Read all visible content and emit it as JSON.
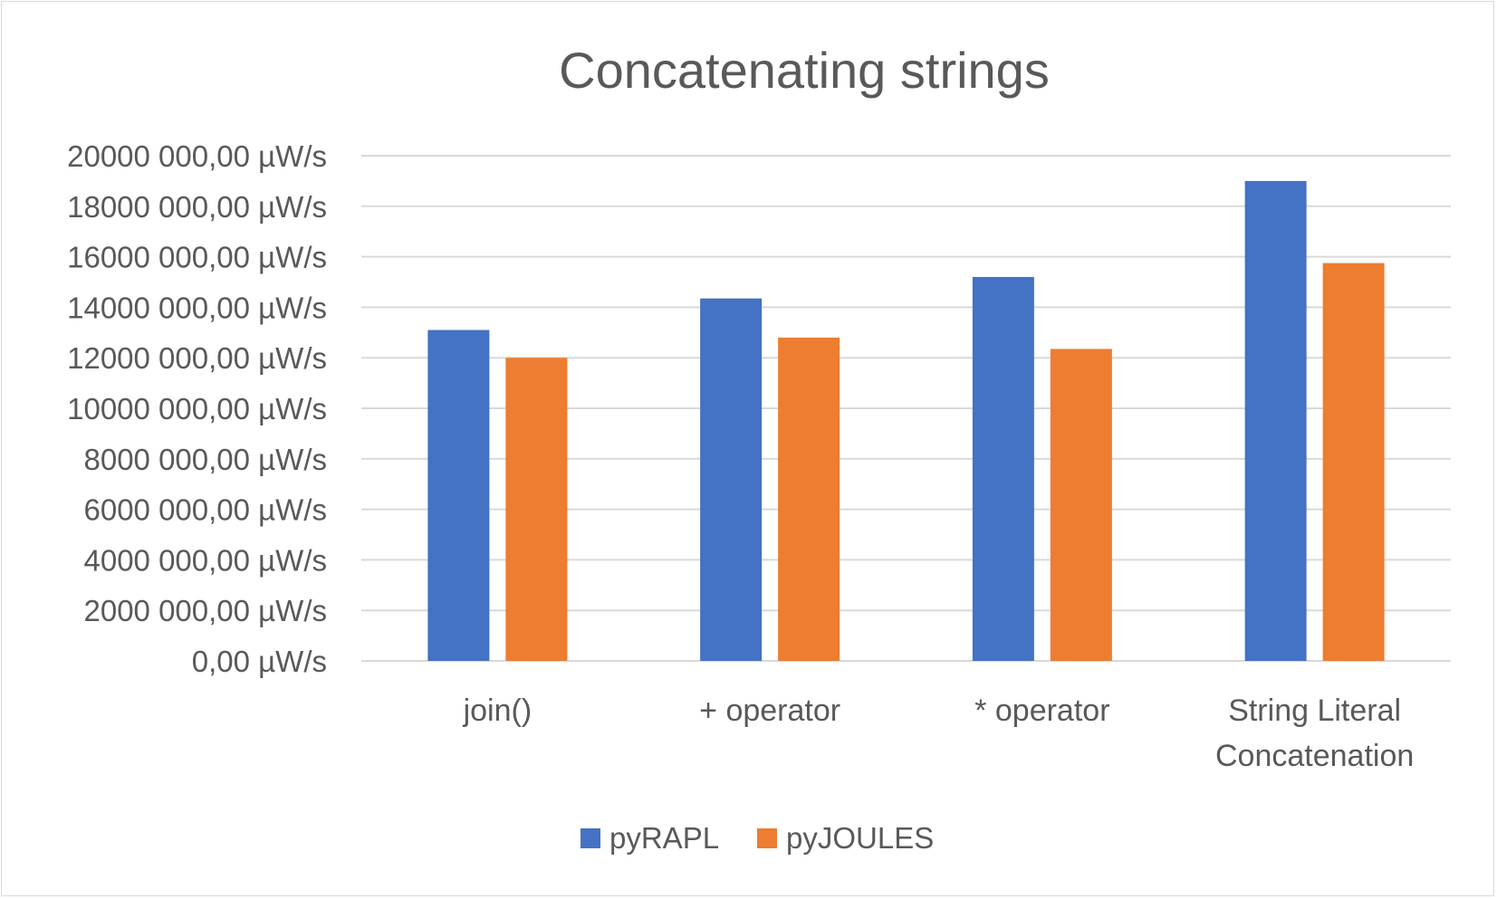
{
  "chart_data": {
    "type": "bar",
    "title": "Concatenating strings",
    "xlabel": "",
    "ylabel": "",
    "categories": [
      [
        "join()"
      ],
      [
        "+ operator"
      ],
      [
        "* operator"
      ],
      [
        "String Literal",
        "Concatenation"
      ]
    ],
    "series": [
      {
        "name": "pyRAPL",
        "color": "#4472c4",
        "values": [
          13100000,
          14350000,
          15200000,
          19000000
        ]
      },
      {
        "name": "pyJOULES",
        "color": "#ed7d31",
        "values": [
          12000000,
          12800000,
          12350000,
          15750000
        ]
      }
    ],
    "ylim": [
      0,
      20000000
    ],
    "yticks": [
      {
        "value": 20000000,
        "label": "20000 000,00 µW/s"
      },
      {
        "value": 18000000,
        "label": "18000 000,00 µW/s"
      },
      {
        "value": 16000000,
        "label": "16000 000,00 µW/s"
      },
      {
        "value": 14000000,
        "label": "14000 000,00 µW/s"
      },
      {
        "value": 12000000,
        "label": "12000 000,00 µW/s"
      },
      {
        "value": 10000000,
        "label": "10000 000,00 µW/s"
      },
      {
        "value": 8000000,
        "label": "8000 000,00 µW/s"
      },
      {
        "value": 6000000,
        "label": "6000 000,00 µW/s"
      },
      {
        "value": 4000000,
        "label": "4000 000,00 µW/s"
      },
      {
        "value": 2000000,
        "label": "2000 000,00 µW/s"
      },
      {
        "value": 0,
        "label": "0,00 µW/s"
      }
    ],
    "grid": true,
    "legend_position": "bottom-center",
    "gridline_color": "#d9d9d9",
    "text_color": "#595959"
  }
}
